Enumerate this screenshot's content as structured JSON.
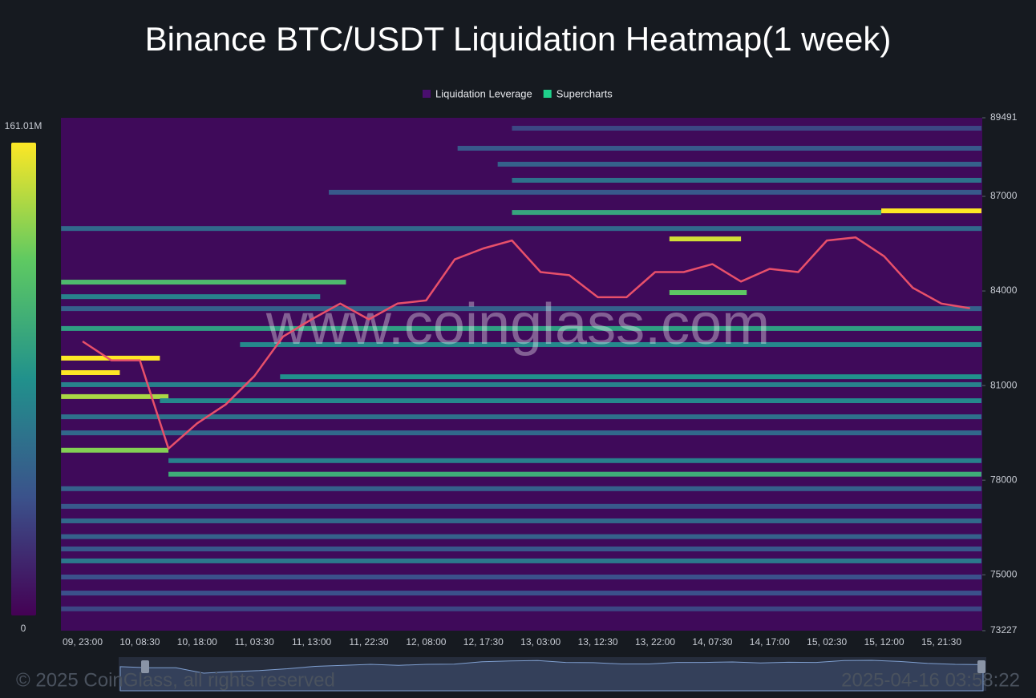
{
  "chart_data": {
    "type": "heatmap",
    "title": "Binance BTC/USDT Liquidation Heatmap(1 week)",
    "legend": [
      {
        "name": "Liquidation Leverage",
        "color": "#4a0f6e"
      },
      {
        "name": "Supercharts",
        "color": "#1fcf8a"
      }
    ],
    "categories": [
      "09, 23:00",
      null,
      "10, 08:30",
      null,
      "10, 18:00",
      null,
      "11, 03:30",
      null,
      "11, 13:00",
      null,
      "11, 22:30",
      null,
      "12, 08:00",
      null,
      "12, 17:30",
      null,
      "13, 03:00",
      null,
      "13, 12:30",
      null,
      "13, 22:00",
      null,
      "14, 07:30",
      null,
      "14, 17:00",
      null,
      "15, 02:30",
      null,
      "15, 12:00",
      null,
      "15, 21:30",
      null
    ],
    "price": [
      82400,
      81800,
      81800,
      79000,
      79800,
      80400,
      81300,
      82550,
      83100,
      83600,
      83100,
      83600,
      83700,
      85000,
      85350,
      85600,
      84600,
      84500,
      83800,
      83800,
      84600,
      84600,
      84850,
      84300,
      84700,
      84600,
      85600,
      85700,
      85100,
      84100,
      83600,
      83450
    ],
    "price_color": "#e8506a",
    "bands": [
      {
        "price": 89160,
        "x0": 15.0,
        "x1": 31.4,
        "value": 35
      },
      {
        "price": 88525,
        "x0": 13.1,
        "x1": 31.4,
        "value": 45
      },
      {
        "price": 88020,
        "x0": 14.5,
        "x1": 31.4,
        "value": 50
      },
      {
        "price": 87510,
        "x0": 15.0,
        "x1": 31.4,
        "value": 60
      },
      {
        "price": 87130,
        "x0": 8.6,
        "x1": 31.4,
        "value": 45
      },
      {
        "price": 86490,
        "x0": 15.0,
        "x1": 27.9,
        "value": 95
      },
      {
        "price": 86540,
        "x0": 27.9,
        "x1": 31.4,
        "value": 161
      },
      {
        "price": 85980,
        "x0": -0.75,
        "x1": 31.4,
        "value": 55
      },
      {
        "price": 85650,
        "x0": 20.5,
        "x1": 23.0,
        "value": 150
      },
      {
        "price": 84280,
        "x0": -0.75,
        "x1": 9.2,
        "value": 110
      },
      {
        "price": 83820,
        "x0": -0.75,
        "x1": 8.3,
        "value": 70
      },
      {
        "price": 83950,
        "x0": 20.5,
        "x1": 23.2,
        "value": 120
      },
      {
        "price": 83440,
        "x0": -0.75,
        "x1": 31.4,
        "value": 50
      },
      {
        "price": 82810,
        "x0": -0.75,
        "x1": 31.4,
        "value": 90
      },
      {
        "price": 82300,
        "x0": 5.5,
        "x1": 31.4,
        "value": 75
      },
      {
        "price": 81870,
        "x0": -0.75,
        "x1": 2.7,
        "value": 161
      },
      {
        "price": 81410,
        "x0": -0.75,
        "x1": 1.3,
        "value": 161
      },
      {
        "price": 81280,
        "x0": 6.9,
        "x1": 31.4,
        "value": 80
      },
      {
        "price": 81030,
        "x0": -0.75,
        "x1": 31.4,
        "value": 70
      },
      {
        "price": 80650,
        "x0": -0.75,
        "x1": 3.0,
        "value": 140
      },
      {
        "price": 80520,
        "x0": 2.7,
        "x1": 31.4,
        "value": 75
      },
      {
        "price": 80010,
        "x0": -0.75,
        "x1": 31.4,
        "value": 60
      },
      {
        "price": 79500,
        "x0": -0.75,
        "x1": 31.4,
        "value": 55
      },
      {
        "price": 78950,
        "x0": -0.75,
        "x1": 3.0,
        "value": 130
      },
      {
        "price": 78620,
        "x0": 3.0,
        "x1": 31.4,
        "value": 70
      },
      {
        "price": 78190,
        "x0": 3.0,
        "x1": 31.4,
        "value": 100
      },
      {
        "price": 77730,
        "x0": -0.75,
        "x1": 31.4,
        "value": 50
      },
      {
        "price": 77170,
        "x0": -0.75,
        "x1": 31.4,
        "value": 45
      },
      {
        "price": 76710,
        "x0": -0.75,
        "x1": 31.4,
        "value": 55
      },
      {
        "price": 76210,
        "x0": -0.75,
        "x1": 31.4,
        "value": 50
      },
      {
        "price": 75820,
        "x0": -0.75,
        "x1": 31.4,
        "value": 45
      },
      {
        "price": 75440,
        "x0": -0.75,
        "x1": 31.4,
        "value": 65
      },
      {
        "price": 74930,
        "x0": -0.75,
        "x1": 31.4,
        "value": 40
      },
      {
        "price": 74420,
        "x0": -0.75,
        "x1": 31.4,
        "value": 40
      },
      {
        "price": 73920,
        "x0": -0.75,
        "x1": 31.4,
        "value": 35
      }
    ],
    "ylim": [
      73227,
      89491
    ],
    "yticks": [
      89491,
      87000,
      84000,
      81000,
      78000,
      75000,
      73227
    ],
    "clim": [
      0,
      161.01
    ],
    "cticks": [
      {
        "value": 161.01,
        "label": "161.01M"
      },
      0
    ],
    "watermark": "www.coinglass.com",
    "footer": {
      "copyright": "© 2025 CoinGlass, all rights reserved",
      "timestamp": "2025-04-16 03:58:22"
    }
  }
}
